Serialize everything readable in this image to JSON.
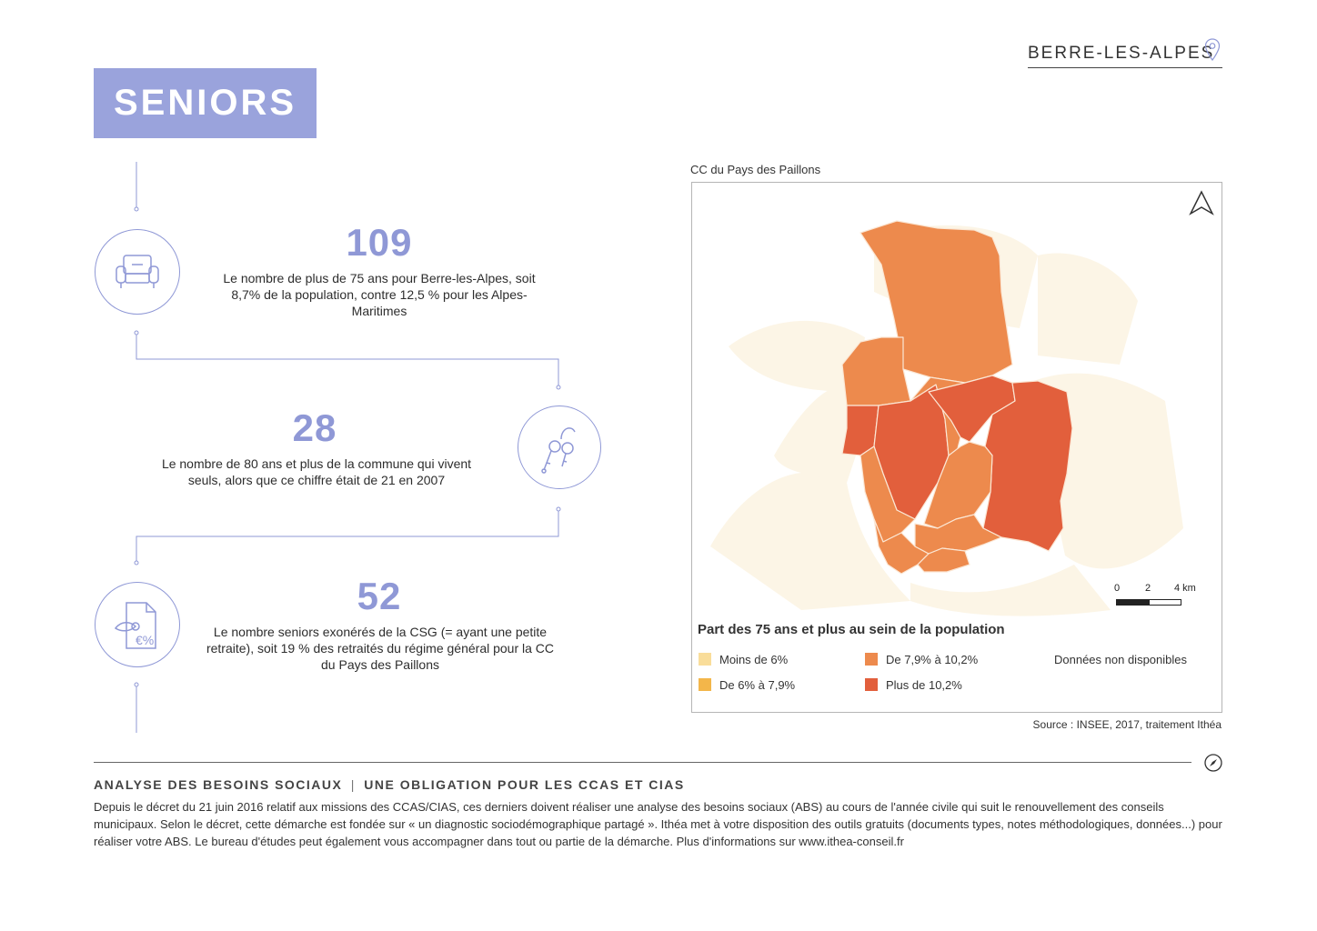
{
  "header": {
    "location": "BERRE-LES-ALPES",
    "location_icon": "map-pin-icon"
  },
  "banner": {
    "title": "SENIORS"
  },
  "stats": [
    {
      "value": "109",
      "text": "Le nombre de plus de 75 ans pour Berre-les-Alpes, soit 8,7% de la population, contre 12,5 % pour les Alpes-Maritimes",
      "icon": "armchair-icon"
    },
    {
      "value": "28",
      "text": "Le nombre de 80 ans et plus de la commune qui vivent seuls, alors que ce chiffre était de 21 en 2007",
      "icon": "keys-icon"
    },
    {
      "value": "52",
      "text": "Le nombre seniors exonérés de la CSG (= ayant une petite retraite), soit 19 % des retraités du régime général pour la CC du Pays des Paillons",
      "icon": "document-percent-icon"
    }
  ],
  "map": {
    "caption": "CC du Pays des Paillons",
    "north_icon": "north-arrow-icon",
    "scale": {
      "labels": [
        "0",
        "2",
        "4 km"
      ]
    },
    "legend_title": "Part des 75 ans et plus au sein de la population",
    "legend": [
      {
        "label": "Moins de 6%",
        "color": "#f9dd9a"
      },
      {
        "label": "De 6% à 7,9%",
        "color": "#f3b64a"
      },
      {
        "label": "De 7,9% à 10,2%",
        "color": "#ed8a4d"
      },
      {
        "label": "Plus de 10,2%",
        "color": "#e25f3c"
      },
      {
        "label": "Données non disponibles",
        "color": ""
      }
    ],
    "source": "Source : INSEE, 2017, traitement Ithéa"
  },
  "footer": {
    "title_left": "ANALYSE DES BESOINS SOCIAUX",
    "title_right": "UNE OBLIGATION POUR LES CCAS ET CIAS",
    "compass_icon": "compass-icon",
    "text": "Depuis le décret du 21 juin 2016 relatif aux missions des CCAS/CIAS, ces derniers doivent réaliser une analyse des besoins sociaux (ABS) au cours de l'année civile qui suit le renouvellement des conseils municipaux. Selon le décret, cette démarche est fondée sur « un diagnostic sociodémographique partagé ». Ithéa met à votre disposition des outils gratuits (documents types, notes méthodologiques, données...) pour réaliser votre ABS. Le bureau d'études peut également vous accompagner dans tout ou partie de la démarche. Plus d'informations sur www.ithea-conseil.fr"
  }
}
